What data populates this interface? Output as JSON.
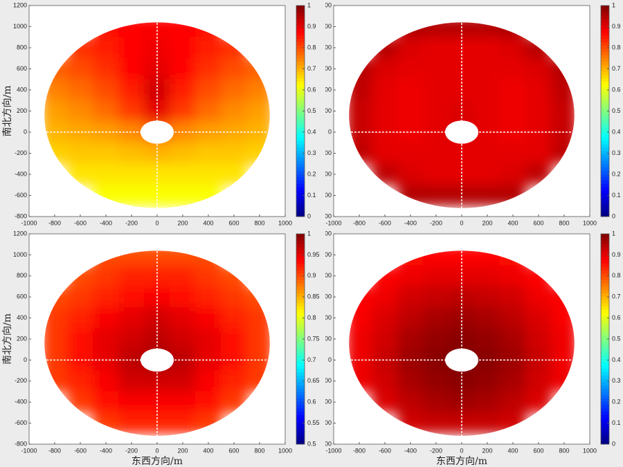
{
  "chart_data": [
    {
      "type": "heatmap",
      "colormap": "jet",
      "x": [
        -800,
        -600,
        -400,
        -200,
        0,
        200,
        400,
        600,
        800
      ],
      "y": [
        1000,
        800,
        600,
        400,
        200,
        0,
        -200,
        -400,
        -600
      ],
      "z": [
        [
          null,
          null,
          0.86,
          0.87,
          0.88,
          0.87,
          0.86,
          null,
          null
        ],
        [
          null,
          0.83,
          0.85,
          0.87,
          0.89,
          0.87,
          0.85,
          0.83,
          null
        ],
        [
          0.78,
          0.8,
          0.83,
          0.87,
          0.9,
          0.87,
          0.83,
          0.8,
          0.78
        ],
        [
          0.75,
          0.77,
          0.8,
          0.85,
          0.92,
          0.85,
          0.8,
          0.77,
          0.75
        ],
        [
          0.72,
          0.74,
          0.77,
          0.82,
          0.9,
          0.82,
          0.77,
          0.74,
          0.72
        ],
        [
          0.7,
          0.71,
          0.72,
          0.74,
          0.78,
          0.74,
          0.72,
          0.71,
          0.7
        ],
        [
          0.67,
          0.68,
          0.68,
          0.69,
          0.7,
          0.69,
          0.68,
          0.68,
          0.67
        ],
        [
          null,
          0.65,
          0.65,
          0.65,
          0.65,
          0.65,
          0.65,
          0.65,
          null
        ],
        [
          null,
          null,
          0.62,
          0.62,
          0.62,
          0.62,
          0.62,
          null,
          null
        ]
      ],
      "xlim": [
        -1000,
        1000
      ],
      "xticks": [
        -1000,
        -800,
        -600,
        -400,
        -200,
        0,
        200,
        400,
        600,
        800,
        1000
      ],
      "ylim": [
        -800,
        1200
      ],
      "yticks": [
        -800,
        -600,
        -400,
        -200,
        0,
        200,
        400,
        600,
        800,
        1000,
        1200
      ],
      "zlim": [
        0,
        1
      ],
      "zticks": [
        0,
        0.1,
        0.2,
        0.3,
        0.4,
        0.5,
        0.6,
        0.7,
        0.8,
        0.9,
        1
      ],
      "ylabel": "南北方向/m"
    },
    {
      "type": "heatmap",
      "colormap": "jet",
      "x": [
        -800,
        -600,
        -400,
        -200,
        0,
        200,
        400,
        600,
        800
      ],
      "y": [
        1000,
        800,
        600,
        400,
        200,
        0,
        -200,
        -400,
        -600
      ],
      "z": [
        [
          null,
          null,
          0.96,
          0.95,
          0.95,
          0.95,
          0.96,
          null,
          null
        ],
        [
          null,
          0.95,
          0.91,
          0.9,
          0.9,
          0.9,
          0.91,
          0.95,
          null
        ],
        [
          0.95,
          0.91,
          0.9,
          0.9,
          0.9,
          0.9,
          0.9,
          0.91,
          0.95
        ],
        [
          0.94,
          0.9,
          0.89,
          0.9,
          0.9,
          0.9,
          0.89,
          0.9,
          0.94
        ],
        [
          0.93,
          0.9,
          0.89,
          0.9,
          0.91,
          0.9,
          0.89,
          0.9,
          0.93
        ],
        [
          0.93,
          0.9,
          0.89,
          0.9,
          0.91,
          0.9,
          0.89,
          0.9,
          0.93
        ],
        [
          0.94,
          0.9,
          0.9,
          0.9,
          0.9,
          0.9,
          0.9,
          0.9,
          0.94
        ],
        [
          null,
          0.94,
          0.91,
          0.9,
          0.9,
          0.9,
          0.91,
          0.94,
          null
        ],
        [
          null,
          null,
          0.95,
          0.95,
          0.95,
          0.95,
          0.95,
          null,
          null
        ]
      ],
      "xlim": [
        -1000,
        1000
      ],
      "xticks": [
        -1000,
        -800,
        -600,
        -400,
        -200,
        0,
        200,
        400,
        600,
        800,
        1000
      ],
      "ylim": [
        -800,
        1200
      ],
      "yticks": [
        -800,
        -600,
        -400,
        -200,
        0,
        200,
        400,
        600,
        800,
        1000,
        1200
      ],
      "zlim": [
        0,
        1
      ],
      "zticks": [
        0,
        0.1,
        0.2,
        0.3,
        0.4,
        0.5,
        0.6,
        0.7,
        0.8,
        0.9,
        1
      ]
    },
    {
      "type": "heatmap",
      "colormap": "jet",
      "x": [
        -800,
        -600,
        -400,
        -200,
        0,
        200,
        400,
        600,
        800
      ],
      "y": [
        1000,
        800,
        600,
        400,
        200,
        0,
        -200,
        -400,
        -600
      ],
      "z": [
        [
          null,
          null,
          0.9,
          0.9,
          0.9,
          0.9,
          0.9,
          null,
          null
        ],
        [
          null,
          0.9,
          0.91,
          0.92,
          0.92,
          0.92,
          0.91,
          0.9,
          null
        ],
        [
          0.9,
          0.91,
          0.92,
          0.93,
          0.94,
          0.93,
          0.92,
          0.91,
          0.9
        ],
        [
          0.91,
          0.92,
          0.94,
          0.95,
          0.96,
          0.95,
          0.94,
          0.92,
          0.91
        ],
        [
          0.91,
          0.93,
          0.95,
          0.96,
          0.97,
          0.96,
          0.95,
          0.93,
          0.91
        ],
        [
          0.91,
          0.93,
          0.95,
          0.97,
          0.98,
          0.97,
          0.95,
          0.93,
          0.91
        ],
        [
          0.91,
          0.92,
          0.94,
          0.96,
          0.96,
          0.96,
          0.94,
          0.92,
          0.91
        ],
        [
          null,
          0.91,
          0.93,
          0.94,
          0.94,
          0.94,
          0.93,
          0.91,
          null
        ],
        [
          null,
          null,
          0.91,
          0.92,
          0.92,
          0.92,
          0.91,
          null,
          null
        ]
      ],
      "xlim": [
        -1000,
        1000
      ],
      "xticks": [
        -1000,
        -800,
        -600,
        -400,
        -200,
        0,
        200,
        400,
        600,
        800,
        1000
      ],
      "ylim": [
        -800,
        1200
      ],
      "yticks": [
        -800,
        -600,
        -400,
        -200,
        0,
        200,
        400,
        600,
        800,
        1000,
        1200
      ],
      "zlim": [
        0.5,
        1
      ],
      "zticks": [
        0.5,
        0.55,
        0.6,
        0.65,
        0.7,
        0.75,
        0.8,
        0.85,
        0.9,
        0.95,
        1
      ],
      "xlabel": "东西方向/m",
      "ylabel": "南北方向/m"
    },
    {
      "type": "heatmap",
      "colormap": "jet",
      "x": [
        -800,
        -600,
        -400,
        -200,
        0,
        200,
        400,
        600,
        800
      ],
      "y": [
        1000,
        800,
        600,
        400,
        200,
        0,
        -200,
        -400,
        -600
      ],
      "z": [
        [
          null,
          null,
          0.86,
          0.87,
          0.87,
          0.87,
          0.86,
          null,
          null
        ],
        [
          null,
          0.87,
          0.89,
          0.9,
          0.9,
          0.9,
          0.89,
          0.87,
          null
        ],
        [
          0.87,
          0.89,
          0.92,
          0.93,
          0.94,
          0.93,
          0.92,
          0.89,
          0.87
        ],
        [
          0.88,
          0.91,
          0.94,
          0.96,
          0.97,
          0.96,
          0.94,
          0.91,
          0.88
        ],
        [
          0.89,
          0.92,
          0.96,
          0.98,
          0.99,
          0.98,
          0.96,
          0.92,
          0.89
        ],
        [
          0.89,
          0.93,
          0.97,
          0.99,
          1,
          0.99,
          0.97,
          0.93,
          0.89
        ],
        [
          0.89,
          0.92,
          0.96,
          0.98,
          0.99,
          0.98,
          0.96,
          0.92,
          0.89
        ],
        [
          null,
          0.91,
          0.94,
          0.96,
          0.97,
          0.96,
          0.94,
          0.91,
          null
        ],
        [
          null,
          null,
          0.92,
          0.93,
          0.93,
          0.93,
          0.92,
          null,
          null
        ]
      ],
      "xlim": [
        -1000,
        1000
      ],
      "xticks": [
        -1000,
        -800,
        -600,
        -400,
        -200,
        0,
        200,
        400,
        600,
        800,
        1000
      ],
      "ylim": [
        -800,
        1200
      ],
      "yticks": [
        -800,
        -600,
        -400,
        -200,
        0,
        200,
        400,
        600,
        800,
        1000,
        1200
      ],
      "zlim": [
        0,
        1
      ],
      "zticks": [
        0,
        0.1,
        0.2,
        0.3,
        0.4,
        0.5,
        0.6,
        0.7,
        0.8,
        0.9,
        1
      ],
      "xlabel": "东西方向/m"
    }
  ]
}
